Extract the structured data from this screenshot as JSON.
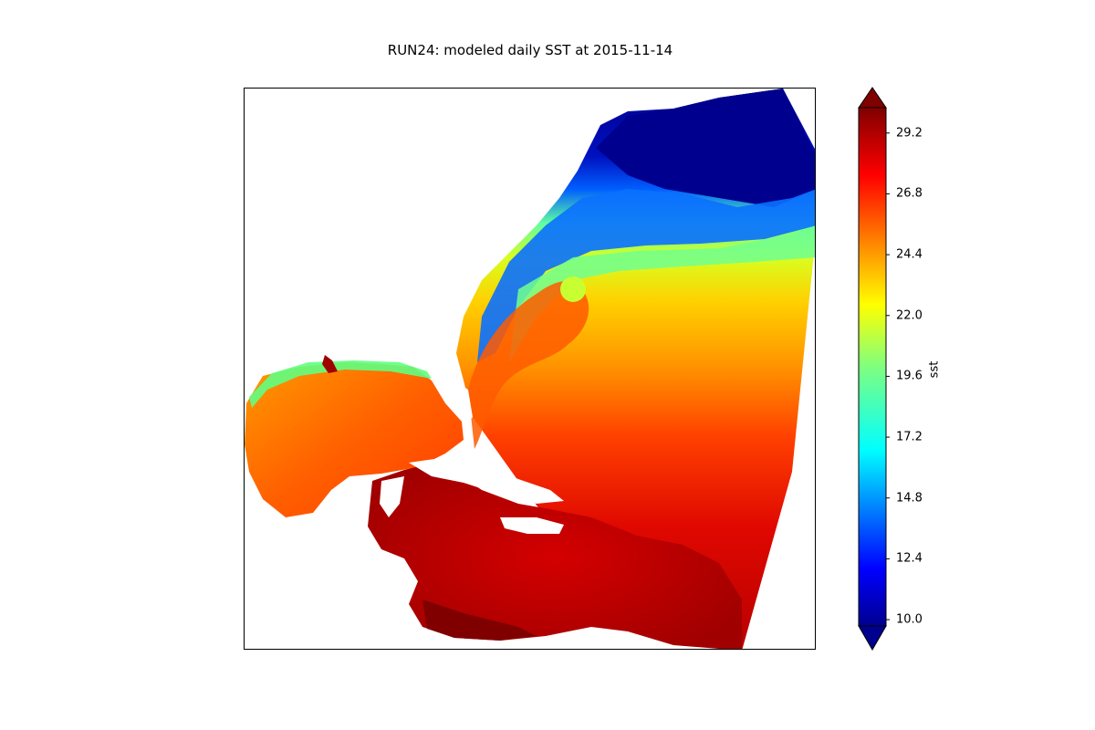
{
  "title": "RUN24: modeled daily SST at 2015-11-14",
  "colorbar": {
    "label": "sst",
    "ticks": [
      "10.0",
      "12.4",
      "14.8",
      "17.2",
      "19.6",
      "22.0",
      "24.4",
      "26.8",
      "29.2"
    ],
    "vmin": 10.0,
    "vmax": 31.0,
    "extend": "both",
    "colormap": "jet"
  },
  "colors": {
    "cold": "#00008f",
    "blue": "#0030ff",
    "cyan": "#00e0ff",
    "green": "#7fff7f",
    "yellow": "#ffe000",
    "orange": "#ff7a00",
    "red": "#f01000",
    "dark_red": "#a00000"
  }
}
